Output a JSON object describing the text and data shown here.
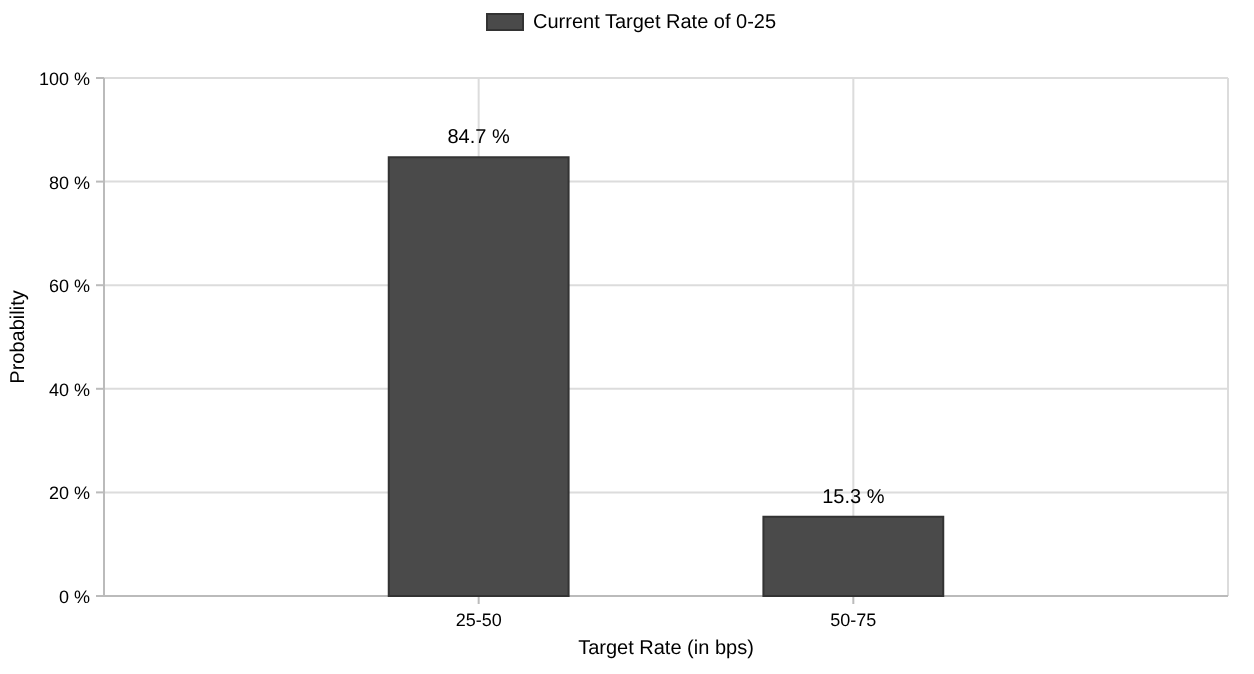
{
  "chart_data": {
    "type": "bar",
    "xlabel": "Target Rate (in bps)",
    "ylabel": "Probability",
    "categories": [
      "25-50",
      "50-75"
    ],
    "series": [
      {
        "name": "Current Target Rate of 0-25",
        "color": "#4a4a4a",
        "values": [
          84.7,
          15.3
        ],
        "value_labels": [
          "84.7 %",
          "15.3 %"
        ]
      }
    ],
    "ylim": [
      0,
      100
    ],
    "yticks": [
      {
        "value": 0,
        "label": "0 %"
      },
      {
        "value": 20,
        "label": "20 %"
      },
      {
        "value": 40,
        "label": "40 %"
      },
      {
        "value": 60,
        "label": "60 %"
      },
      {
        "value": 80,
        "label": "80 %"
      },
      {
        "value": 100,
        "label": "100 %"
      }
    ],
    "grid": true,
    "legend": "top"
  }
}
